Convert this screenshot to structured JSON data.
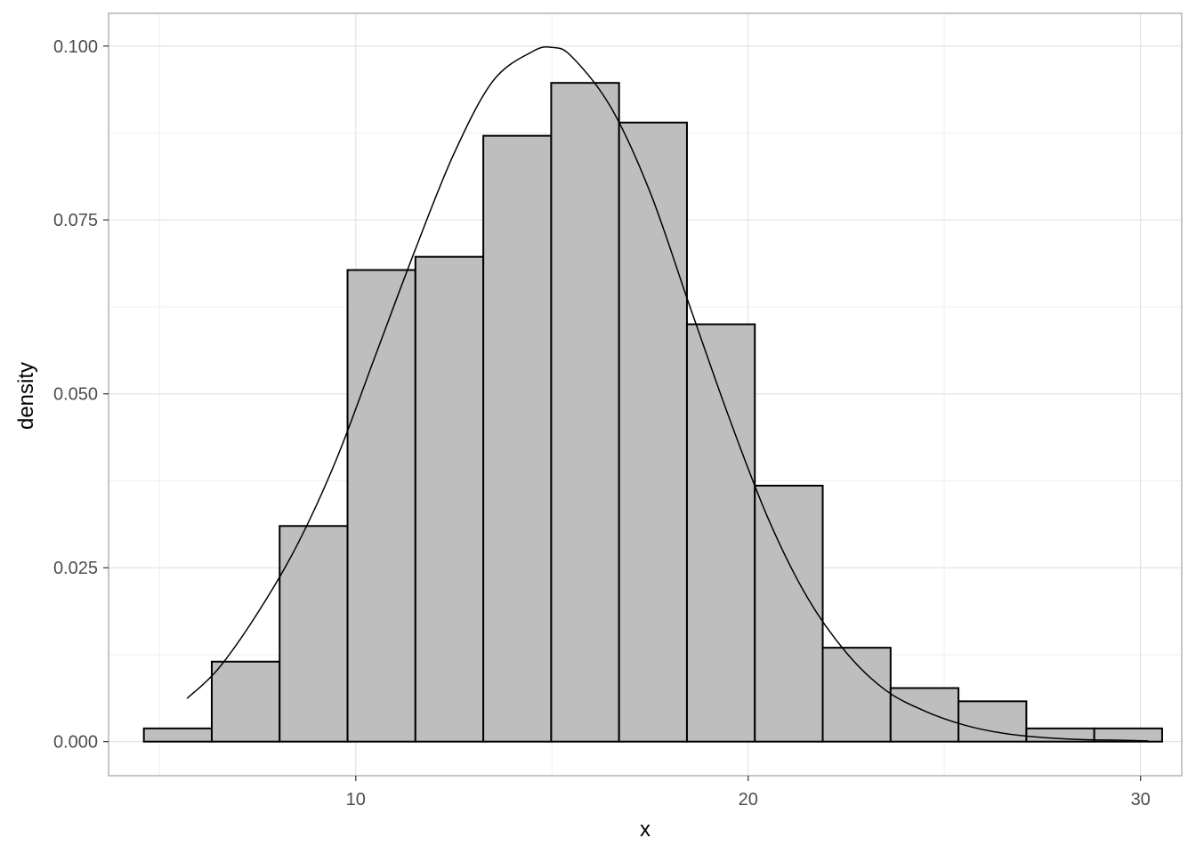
{
  "chart_data": {
    "type": "bar",
    "subtype": "histogram",
    "title": "",
    "xlabel": "x",
    "ylabel": "density",
    "xlim": [
      3.7,
      31.05
    ],
    "ylim": [
      -0.0049,
      0.1047
    ],
    "x_ticks": [
      {
        "value": 10,
        "label": "10"
      },
      {
        "value": 20,
        "label": "20"
      },
      {
        "value": 30,
        "label": "30"
      }
    ],
    "x_minor_ticks": [
      5,
      15,
      25
    ],
    "y_ticks": [
      {
        "value": 0.0,
        "label": "0.000"
      },
      {
        "value": 0.025,
        "label": "0.025"
      },
      {
        "value": 0.05,
        "label": "0.050"
      },
      {
        "value": 0.075,
        "label": "0.075"
      },
      {
        "value": 0.1,
        "label": "0.100"
      }
    ],
    "y_minor_ticks": [
      0.0125,
      0.0375,
      0.0625,
      0.0875
    ],
    "grid": true,
    "legend": "none",
    "bins": [
      {
        "x0": 4.6,
        "x1": 6.33,
        "density": 0.0019
      },
      {
        "x0": 6.33,
        "x1": 8.06,
        "density": 0.0115
      },
      {
        "x0": 8.06,
        "x1": 9.79,
        "density": 0.031
      },
      {
        "x0": 9.79,
        "x1": 11.52,
        "density": 0.0678
      },
      {
        "x0": 11.52,
        "x1": 13.25,
        "density": 0.0697
      },
      {
        "x0": 13.25,
        "x1": 14.98,
        "density": 0.0871
      },
      {
        "x0": 14.98,
        "x1": 16.71,
        "density": 0.0947
      },
      {
        "x0": 16.71,
        "x1": 18.44,
        "density": 0.089
      },
      {
        "x0": 18.44,
        "x1": 20.17,
        "density": 0.06
      },
      {
        "x0": 20.17,
        "x1": 21.9,
        "density": 0.0368
      },
      {
        "x0": 21.9,
        "x1": 23.63,
        "density": 0.0135
      },
      {
        "x0": 23.63,
        "x1": 25.36,
        "density": 0.0077
      },
      {
        "x0": 25.36,
        "x1": 27.09,
        "density": 0.0058
      },
      {
        "x0": 27.09,
        "x1": 28.82,
        "density": 0.0019
      },
      {
        "x0": 28.82,
        "x1": 30.55,
        "density": 0.0019
      }
    ],
    "curve": {
      "type": "density",
      "x": [
        5.7,
        6.5,
        7.5,
        8.5,
        9.5,
        10.5,
        11.5,
        12.5,
        13.5,
        14.5,
        15.0,
        15.5,
        16.5,
        17.5,
        18.5,
        19.5,
        20.5,
        21.5,
        22.5,
        23.5,
        24.5,
        25.5,
        26.5,
        27.5,
        28.5,
        29.5,
        30.2
      ],
      "y": [
        0.0062,
        0.0105,
        0.0185,
        0.0282,
        0.0405,
        0.0555,
        0.0705,
        0.0845,
        0.095,
        0.0992,
        0.0998,
        0.0985,
        0.0912,
        0.079,
        0.0628,
        0.0468,
        0.0322,
        0.0208,
        0.0128,
        0.0074,
        0.0044,
        0.0024,
        0.0012,
        0.0006,
        0.0003,
        0.0002,
        0.0001
      ]
    },
    "colors": {
      "bar_fill": "#bebebe",
      "bar_stroke": "#000000",
      "curve": "#000000",
      "grid_major": "#dedede",
      "grid_minor": "#efefef",
      "panel_border": "#b3b3b3"
    }
  }
}
